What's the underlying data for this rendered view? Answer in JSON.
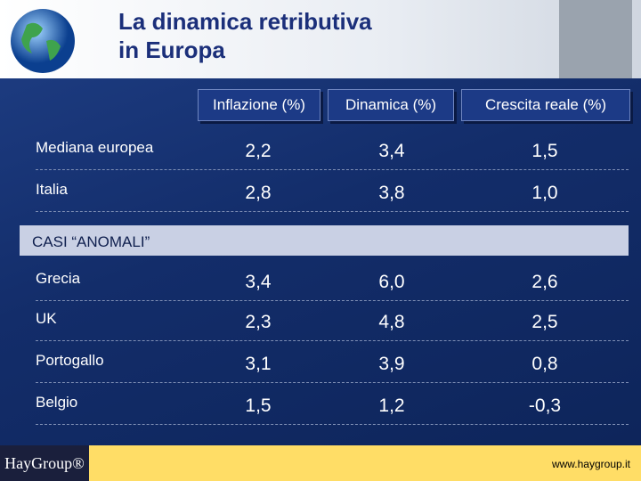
{
  "header": {
    "title": [
      "La dinamica retributiva",
      "in Europa"
    ]
  },
  "table": {
    "columns": [
      "Inflazione (%)",
      "Dinamica (%)",
      "Crescita reale (%)"
    ],
    "rows": [
      {
        "label": "Mediana europea",
        "cells": [
          "2,2",
          "3,4",
          "1,5"
        ]
      },
      {
        "label": "Italia",
        "cells": [
          "2,8",
          "3,8",
          "1,0"
        ]
      }
    ],
    "section": "CASI “ANOMALI”",
    "section_rows": [
      {
        "label": "Grecia",
        "cells": [
          "3,4",
          "6,0",
          "2,6"
        ]
      },
      {
        "label": "UK",
        "cells": [
          "2,3",
          "4,8",
          "2,5"
        ]
      },
      {
        "label": "Portogallo",
        "cells": [
          "3,1",
          "3,9",
          "0,8"
        ]
      },
      {
        "label": "Belgio",
        "cells": [
          "1,5",
          "1,2",
          "-0,3"
        ]
      }
    ]
  },
  "footer": {
    "logo": "HayGroup®",
    "website": "www.haygroup.it"
  }
}
